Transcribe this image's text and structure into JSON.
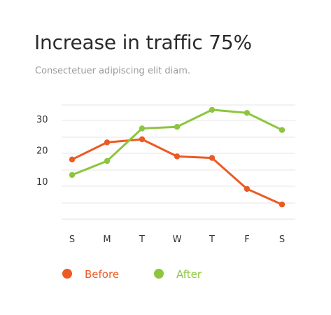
{
  "title": "Increase in traffic 75%",
  "subtitle": "Consectetuer adipiscing elit diam.",
  "colors": {
    "before": "#ec5a24",
    "after": "#8cc63e",
    "grid": "#e6e6e6"
  },
  "chart_data": {
    "type": "line",
    "title": "Increase in traffic 75%",
    "subtitle": "Consectetuer adipiscing elit diam.",
    "categories": [
      "S",
      "M",
      "T",
      "W",
      "T",
      "F",
      "S"
    ],
    "yticks": [
      10,
      20,
      30
    ],
    "ylim": [
      -2,
      35
    ],
    "grid": true,
    "legend": "bottom-left",
    "series": [
      {
        "name": "Before",
        "color": "#ec5a24",
        "values": [
          17,
          22.5,
          23.5,
          18,
          17.5,
          7.5,
          2.5
        ]
      },
      {
        "name": "After",
        "color": "#8cc63e",
        "values": [
          12,
          16.5,
          27,
          27.5,
          33,
          32,
          26.5
        ]
      }
    ]
  }
}
